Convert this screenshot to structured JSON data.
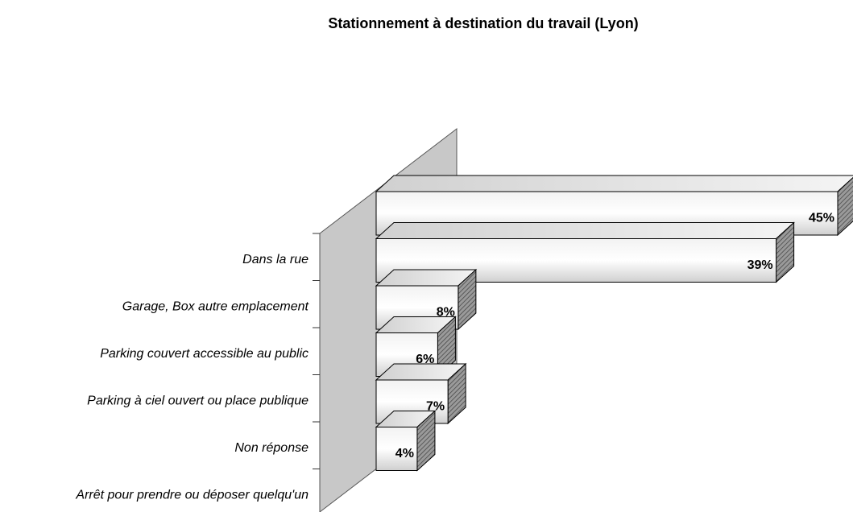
{
  "chart_data": {
    "type": "bar3d",
    "title": "Stationnement à destination du travail (Lyon)",
    "categories": [
      "Dans la rue",
      "Garage, Box autre emplacement",
      "Parking couvert accessible au public",
      "Parking à ciel ouvert ou place publique",
      "Non réponse",
      "Arrêt pour prendre ou déposer quelqu'un"
    ],
    "values": [
      45,
      39,
      8,
      6,
      7,
      4
    ],
    "value_labels": [
      "45%",
      "39%",
      "8%",
      "6%",
      "7%",
      "4%"
    ],
    "color": "#d9d9d9"
  }
}
